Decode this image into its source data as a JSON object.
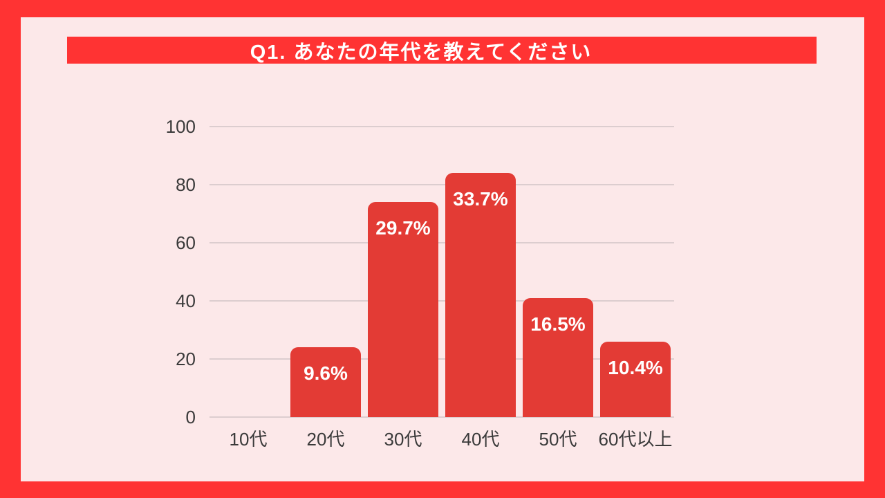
{
  "page": {
    "frame_color": "#FF3333",
    "panel_color": "#FCE8E9"
  },
  "header": {
    "title": "Q1. あなたの年代を教えてください",
    "bg_color": "#FF3333",
    "text_color": "#FFFFFF"
  },
  "chart_data": {
    "type": "bar",
    "title": "Q1. あなたの年代を教えてください",
    "categories": [
      "10代",
      "20代",
      "30代",
      "40代",
      "50代",
      "60代以上"
    ],
    "values": [
      0,
      24,
      74,
      84,
      41,
      26
    ],
    "data_labels": [
      "",
      "9.6%",
      "29.7%",
      "33.7%",
      "16.5%",
      "10.4%"
    ],
    "ylim": [
      0,
      100
    ],
    "yticks": [
      0,
      20,
      40,
      60,
      80,
      100
    ],
    "xlabel": "",
    "ylabel": "",
    "grid": true,
    "legend": false,
    "bar_color": "#E33B35",
    "grid_color": "#DCCDCF",
    "axis_text_color": "#3A3A3A",
    "data_label_color": "#FFFFFF"
  }
}
